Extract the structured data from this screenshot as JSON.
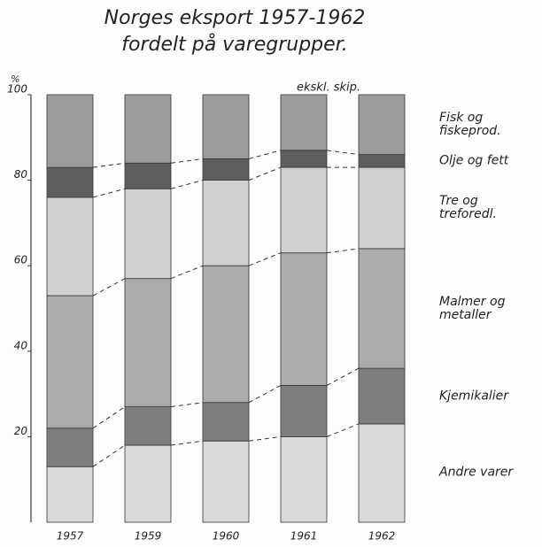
{
  "chart_data": {
    "type": "stacked_bar",
    "title": "Norges eksport 1957-1962",
    "subtitle": "fordelt på varegrupper.",
    "y_label": "%",
    "annotation": "ekskl. skip.",
    "categories": [
      "1957",
      "1959",
      "1960",
      "1961",
      "1962"
    ],
    "series": [
      {
        "name": "Andre varer",
        "color": "#dadada",
        "values": [
          13,
          18,
          19,
          20,
          23
        ]
      },
      {
        "name": "Kjemikalier",
        "color": "#7e7e7e",
        "values": [
          9,
          9,
          9,
          12,
          13
        ]
      },
      {
        "name": "Malmer og metaller",
        "color": "#ababab",
        "values": [
          31,
          30,
          32,
          31,
          28
        ]
      },
      {
        "name": "Tre og treforedl.",
        "color": "#d0d0d0",
        "values": [
          23,
          21,
          20,
          20,
          19
        ]
      },
      {
        "name": "Olje og fett",
        "color": "#5e5e5e",
        "values": [
          7,
          6,
          5,
          4,
          3
        ]
      },
      {
        "name": "Fisk og fiskeprod.",
        "color": "#9c9c9c",
        "values": [
          17,
          16,
          15,
          13,
          14
        ]
      }
    ],
    "ylim": [
      0,
      100
    ],
    "yticks": [
      20,
      40,
      60,
      80,
      100
    ],
    "grid": false
  }
}
